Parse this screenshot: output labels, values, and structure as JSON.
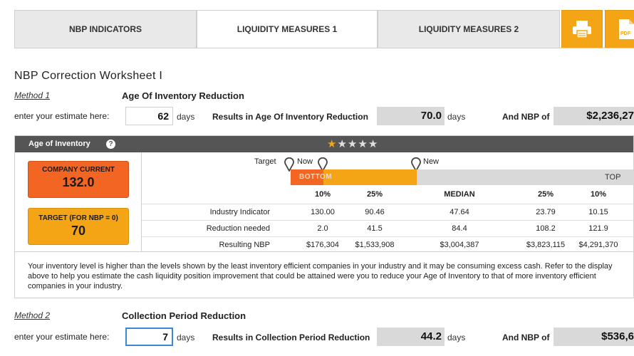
{
  "tabs": [
    {
      "label": "NBP INDICATORS",
      "active": false
    },
    {
      "label": "LIQUIDITY MEASURES 1",
      "active": true
    },
    {
      "label": "LIQUIDITY MEASURES 2",
      "active": false
    }
  ],
  "tab_icons": [
    {
      "name": "printer-icon",
      "label": ""
    },
    {
      "name": "pdf-icon",
      "label": "PDF"
    }
  ],
  "colors": {
    "orange": "#f4a516",
    "red_orange": "#f26522",
    "dark_header": "#555555",
    "grey_box": "#d9d9d9"
  },
  "worksheet_title": "NBP Correction Worksheet I",
  "method1": {
    "link": "Method 1",
    "heading": "Age Of Inventory Reduction",
    "estimate_label": "enter your estimate here:",
    "estimate_value": "62",
    "days_label": "days",
    "results_label": "Results in Age Of Inventory Reduction",
    "results_value": "70.0",
    "results_days": "days",
    "nbp_label": "And NBP of",
    "nbp_value": "$2,236,27"
  },
  "inventory_panel": {
    "title": "Age of Inventory",
    "help_icon": "?",
    "star_rating": 1,
    "star_max": 5,
    "company_current_label": "COMPANY CURRENT",
    "company_current_value": "132.0",
    "target_label": "TARGET (FOR NBP = 0)",
    "target_value": "70",
    "markers": {
      "target": "Target",
      "now": "Now",
      "new": "New"
    },
    "bar_bottom": "BOTTOM",
    "bar_top": "TOP",
    "columns": [
      "10%",
      "25%",
      "MEDIAN",
      "25%",
      "10%"
    ],
    "rows": [
      {
        "label": "Industry Indicator",
        "values": [
          "130.00",
          "90.46",
          "47.64",
          "23.79",
          "10.15"
        ]
      },
      {
        "label": "Reduction needed",
        "values": [
          "2.0",
          "41.5",
          "84.4",
          "108.2",
          "121.9"
        ]
      },
      {
        "label": "Resulting NBP",
        "values": [
          "$176,304",
          "$1,533,908",
          "$3,004,387",
          "$3,823,115",
          "$4,291,370"
        ]
      }
    ],
    "note": "Your inventory level is higher than the levels shown by the least inventory efficient companies in your industry and it may be consuming excess cash. Refer to the display above to help you estimate the cash liquidity position improvement that could be attained were you to reduce your Age of Inventory to that of more inventory efficient companies in your industry."
  },
  "method2": {
    "link": "Method 2",
    "heading": "Collection Period Reduction",
    "estimate_label": "enter your estimate here:",
    "estimate_value": "7",
    "days_label": "days",
    "results_label": "Results in Collection Period Reduction",
    "results_value": "44.2",
    "results_days": "days",
    "nbp_label": "And NBP of",
    "nbp_value": "$536,6"
  }
}
